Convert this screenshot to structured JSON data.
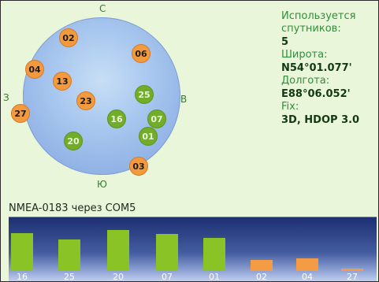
{
  "compass": {
    "north": "С",
    "south": "Ю",
    "east": "В",
    "west": "З"
  },
  "satellites": [
    {
      "id": "02",
      "status": "unused"
    },
    {
      "id": "06",
      "status": "unused"
    },
    {
      "id": "04",
      "status": "unused"
    },
    {
      "id": "13",
      "status": "unused"
    },
    {
      "id": "23",
      "status": "unused"
    },
    {
      "id": "25",
      "status": "used"
    },
    {
      "id": "27",
      "status": "unused"
    },
    {
      "id": "16",
      "status": "used"
    },
    {
      "id": "07",
      "status": "used"
    },
    {
      "id": "01",
      "status": "used"
    },
    {
      "id": "20",
      "status": "used"
    },
    {
      "id": "03",
      "status": "unused"
    }
  ],
  "info": {
    "used_label_line1": "Используется",
    "used_label_line2": "спутников:",
    "used_value": "5",
    "lat_label": "Широта:",
    "lat_value": "N54°01.077'",
    "lon_label": "Долгота:",
    "lon_value": "E88°06.052'",
    "fix_label": "Fix:",
    "fix_value": "3D, HDOP 3.0"
  },
  "status_line": "NMEA-0183 через COM5",
  "signal_bars": [
    {
      "id": "16",
      "level": 0.75,
      "status": "used"
    },
    {
      "id": "25",
      "level": 0.62,
      "status": "used"
    },
    {
      "id": "20",
      "level": 0.81,
      "status": "used"
    },
    {
      "id": "07",
      "level": 0.74,
      "status": "used"
    },
    {
      "id": "01",
      "level": 0.66,
      "status": "used"
    },
    {
      "id": "02",
      "level": 0.22,
      "status": "unused"
    },
    {
      "id": "04",
      "level": 0.25,
      "status": "unused"
    },
    {
      "id": "27",
      "level": 0.04,
      "status": "unused"
    }
  ],
  "colors": {
    "used": "#8ac326",
    "unused": "#f49c45",
    "label_green": "#2f8f3a",
    "value_dark": "#123a12"
  }
}
